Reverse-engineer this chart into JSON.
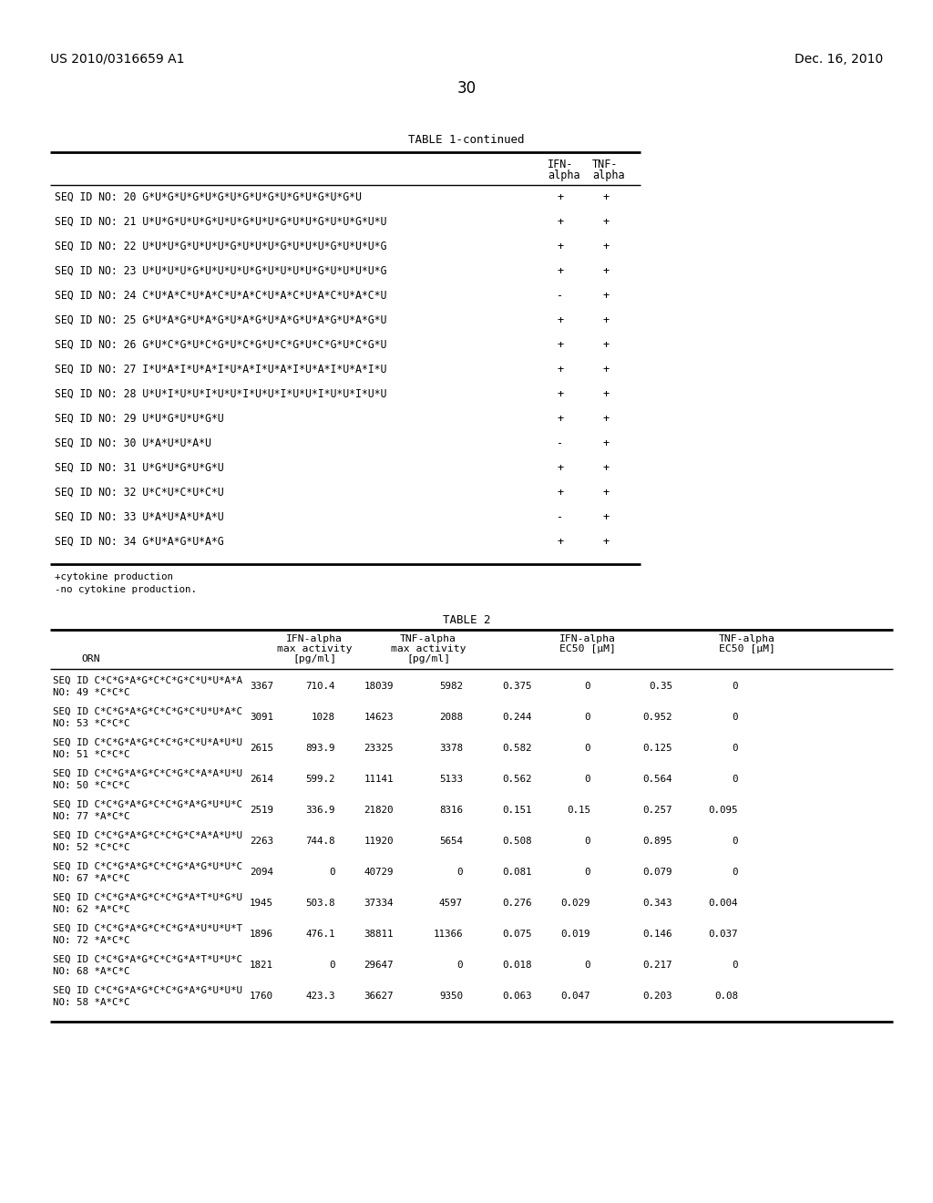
{
  "page_header_left": "US 2010/0316659 A1",
  "page_header_right": "Dec. 16, 2010",
  "page_number": "30",
  "table1_title": "TABLE 1-continued",
  "table1_rows": [
    [
      "SEQ ID NO: 20 G*U*G*U*G*U*G*U*G*U*G*U*G*U*G*U*G*U",
      "+",
      "+"
    ],
    [
      "SEQ ID NO: 21 U*U*G*U*U*G*U*U*G*U*U*G*U*U*G*U*U*G*U*U",
      "+",
      "+"
    ],
    [
      "SEQ ID NO: 22 U*U*U*G*U*U*U*G*U*U*U*G*U*U*U*G*U*U*U*G",
      "+",
      "+"
    ],
    [
      "SEQ ID NO: 23 U*U*U*U*G*U*U*U*U*G*U*U*U*U*G*U*U*U*U*G",
      "+",
      "+"
    ],
    [
      "SEQ ID NO: 24 C*U*A*C*U*A*C*U*A*C*U*A*C*U*A*C*U*A*C*U",
      "-",
      "+"
    ],
    [
      "SEQ ID NO: 25 G*U*A*G*U*A*G*U*A*G*U*A*G*U*A*G*U*A*G*U",
      "+",
      "+"
    ],
    [
      "SEQ ID NO: 26 G*U*C*G*U*C*G*U*C*G*U*C*G*U*C*G*U*C*G*U",
      "+",
      "+"
    ],
    [
      "SEQ ID NO: 27 I*U*A*I*U*A*I*U*A*I*U*A*I*U*A*I*U*A*I*U",
      "+",
      "+"
    ],
    [
      "SEQ ID NO: 28 U*U*I*U*U*I*U*U*I*U*U*I*U*U*I*U*U*I*U*U",
      "+",
      "+"
    ],
    [
      "SEQ ID NO: 29 U*U*G*U*U*G*U",
      "+",
      "+"
    ],
    [
      "SEQ ID NO: 30 U*A*U*U*A*U",
      "-",
      "+"
    ],
    [
      "SEQ ID NO: 31 U*G*U*G*U*G*U",
      "+",
      "+"
    ],
    [
      "SEQ ID NO: 32 U*C*U*C*U*C*U",
      "+",
      "+"
    ],
    [
      "SEQ ID NO: 33 U*A*U*A*U*A*U",
      "-",
      "+"
    ],
    [
      "SEQ ID NO: 34 G*U*A*G*U*A*G",
      "+",
      "+"
    ]
  ],
  "table2_title": "TABLE 2",
  "table2_rows": [
    [
      "SEQ ID C*C*G*A*G*C*C*G*C*U*U*A*A",
      "NO: 49 *C*C*C",
      "3367",
      "710.4",
      "18039",
      "5982",
      "0.375",
      "0",
      "0.35",
      "0"
    ],
    [
      "SEQ ID C*C*G*A*G*C*C*G*C*U*U*A*C",
      "NO: 53 *C*C*C",
      "3091",
      "1028",
      "14623",
      "2088",
      "0.244",
      "0",
      "0.952",
      "0"
    ],
    [
      "SEQ ID C*C*G*A*G*C*C*G*C*U*A*U*U",
      "NO: 51 *C*C*C",
      "2615",
      "893.9",
      "23325",
      "3378",
      "0.582",
      "0",
      "0.125",
      "0"
    ],
    [
      "SEQ ID C*C*G*A*G*C*C*G*C*A*A*U*U",
      "NO: 50 *C*C*C",
      "2614",
      "599.2",
      "11141",
      "5133",
      "0.562",
      "0",
      "0.564",
      "0"
    ],
    [
      "SEQ ID C*C*G*A*G*C*C*G*A*G*U*U*C",
      "NO: 77 *A*C*C",
      "2519",
      "336.9",
      "21820",
      "8316",
      "0.151",
      "0.15",
      "0.257",
      "0.095"
    ],
    [
      "SEQ ID C*C*G*A*G*C*C*G*C*A*A*U*U",
      "NO: 52 *C*C*C",
      "2263",
      "744.8",
      "11920",
      "5654",
      "0.508",
      "0",
      "0.895",
      "0"
    ],
    [
      "SEQ ID C*C*G*A*G*C*C*G*A*G*U*U*C",
      "NO: 67 *A*C*C",
      "2094",
      "0",
      "40729",
      "0",
      "0.081",
      "0",
      "0.079",
      "0"
    ],
    [
      "SEQ ID C*C*G*A*G*C*C*G*A*T*U*G*U",
      "NO: 62 *A*C*C",
      "1945",
      "503.8",
      "37334",
      "4597",
      "0.276",
      "0.029",
      "0.343",
      "0.004"
    ],
    [
      "SEQ ID C*C*G*A*G*C*C*G*A*U*U*U*T",
      "NO: 72 *A*C*C",
      "1896",
      "476.1",
      "38811",
      "11366",
      "0.075",
      "0.019",
      "0.146",
      "0.037"
    ],
    [
      "SEQ ID C*C*G*A*G*C*C*G*A*T*U*U*C",
      "NO: 68 *A*C*C",
      "1821",
      "0",
      "29647",
      "0",
      "0.018",
      "0",
      "0.217",
      "0"
    ],
    [
      "SEQ ID C*C*G*A*G*C*C*G*A*G*U*U*U",
      "NO: 58 *A*C*C",
      "1760",
      "423.3",
      "36627",
      "9350",
      "0.063",
      "0.047",
      "0.203",
      "0.08"
    ]
  ],
  "background_color": "#ffffff"
}
